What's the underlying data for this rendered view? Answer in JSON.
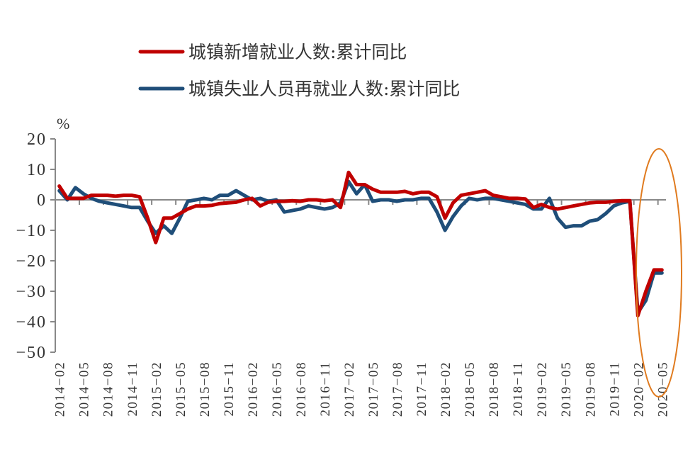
{
  "chart_data": {
    "type": "line",
    "title": "",
    "ylabel": "%",
    "xlabel": "",
    "ylim": [
      -50,
      20
    ],
    "yticks": [
      20,
      10,
      0,
      -10,
      -20,
      -30,
      -40,
      -50
    ],
    "ytick_labels": [
      "20",
      "10",
      "0",
      "−10",
      "−20",
      "−30",
      "−40",
      "−50"
    ],
    "legend_position": "top",
    "grid": false,
    "x_tick_labels": [
      "2014−02",
      "2014−05",
      "2014−08",
      "2014−11",
      "2015−02",
      "2015−05",
      "2015−08",
      "2015−11",
      "2016−02",
      "2016−05",
      "2016−08",
      "2016−11",
      "2017−02",
      "2017−05",
      "2017−08",
      "2017−11",
      "2018−02",
      "2018−05",
      "2018−08",
      "2018−11",
      "2019−02",
      "2019−05",
      "2019−08",
      "2019−11",
      "2020−02",
      "2020−05"
    ],
    "x": [
      "2014-02",
      "2014-03",
      "2014-04",
      "2014-05",
      "2014-06",
      "2014-07",
      "2014-08",
      "2014-09",
      "2014-10",
      "2014-11",
      "2014-12",
      "2015-01",
      "2015-02",
      "2015-03",
      "2015-04",
      "2015-05",
      "2015-06",
      "2015-07",
      "2015-08",
      "2015-09",
      "2015-10",
      "2015-11",
      "2015-12",
      "2016-01",
      "2016-02",
      "2016-03",
      "2016-04",
      "2016-05",
      "2016-06",
      "2016-07",
      "2016-08",
      "2016-09",
      "2016-10",
      "2016-11",
      "2016-12",
      "2017-01",
      "2017-02",
      "2017-03",
      "2017-04",
      "2017-05",
      "2017-06",
      "2017-07",
      "2017-08",
      "2017-09",
      "2017-10",
      "2017-11",
      "2017-12",
      "2018-01",
      "2018-02",
      "2018-03",
      "2018-04",
      "2018-05",
      "2018-06",
      "2018-07",
      "2018-08",
      "2018-09",
      "2018-10",
      "2018-11",
      "2018-12",
      "2019-01",
      "2019-02",
      "2019-03",
      "2019-04",
      "2019-05",
      "2019-06",
      "2019-07",
      "2019-08",
      "2019-09",
      "2019-10",
      "2019-11",
      "2019-12",
      "2020-01",
      "2020-02",
      "2020-03",
      "2020-04",
      "2020-05"
    ],
    "series": [
      {
        "name": "城镇新增就业人数:累计同比",
        "color": "#c00000",
        "values": [
          4.5,
          0.5,
          0.5,
          0.5,
          1.5,
          1.5,
          1.5,
          1.2,
          1.5,
          1.5,
          1.0,
          -6.0,
          -14.0,
          -6.0,
          -6.0,
          -4.5,
          -3.0,
          -2.0,
          -2.0,
          -1.8,
          -1.2,
          -1.0,
          -0.8,
          0.0,
          0.5,
          -2.0,
          -0.8,
          -0.5,
          -0.5,
          -0.3,
          -0.5,
          0.0,
          0.0,
          -0.3,
          0.0,
          -2.5,
          9.0,
          5.0,
          5.0,
          3.5,
          2.5,
          2.5,
          2.5,
          2.8,
          2.0,
          2.5,
          2.5,
          1.0,
          -6.0,
          -1.0,
          1.5,
          2.0,
          2.5,
          3.0,
          1.5,
          1.0,
          0.5,
          0.5,
          0.3,
          -2.5,
          -1.5,
          -2.5,
          -3.0,
          -2.5,
          -2.0,
          -1.5,
          -1.0,
          -0.8,
          -0.8,
          -0.5,
          -0.3,
          -0.3,
          -38.0,
          -30.0,
          -23.0,
          -23.0
        ]
      },
      {
        "name": "城镇失业人员再就业人数:累计同比",
        "color": "#1f4e79",
        "values": [
          3.0,
          0.0,
          4.0,
          2.0,
          0.5,
          -0.5,
          -1.0,
          -1.5,
          -2.0,
          -2.5,
          -2.5,
          -7.0,
          -11.0,
          -8.5,
          -11.0,
          -6.0,
          -0.5,
          0.0,
          0.5,
          0.0,
          1.5,
          1.5,
          3.0,
          1.5,
          0.0,
          0.5,
          -0.5,
          0.0,
          -4.0,
          -3.5,
          -3.0,
          -2.0,
          -2.5,
          -3.0,
          -2.5,
          -1.0,
          6.0,
          2.0,
          5.0,
          -0.5,
          0.0,
          0.0,
          -0.5,
          0.0,
          0.0,
          0.5,
          0.5,
          -4.0,
          -10.0,
          -5.5,
          -2.0,
          0.5,
          0.0,
          0.5,
          0.5,
          0.0,
          -0.5,
          -1.0,
          -1.5,
          -3.0,
          -3.0,
          0.5,
          -6.0,
          -9.0,
          -8.5,
          -8.5,
          -7.0,
          -6.5,
          -4.5,
          -2.0,
          -1.0,
          -0.5,
          -37.0,
          -33.0,
          -24.0,
          -24.0
        ]
      }
    ],
    "annotations": [
      {
        "type": "ellipse",
        "color": "#e07b1f",
        "around": "2020-02 to 2020-05"
      }
    ]
  },
  "legend": {
    "items": [
      {
        "label": "城镇新增就业人数:累计同比",
        "color": "#c00000"
      },
      {
        "label": "城镇失业人员再就业人数:累计同比",
        "color": "#1f4e79"
      }
    ]
  },
  "axis": {
    "unit": "%"
  }
}
